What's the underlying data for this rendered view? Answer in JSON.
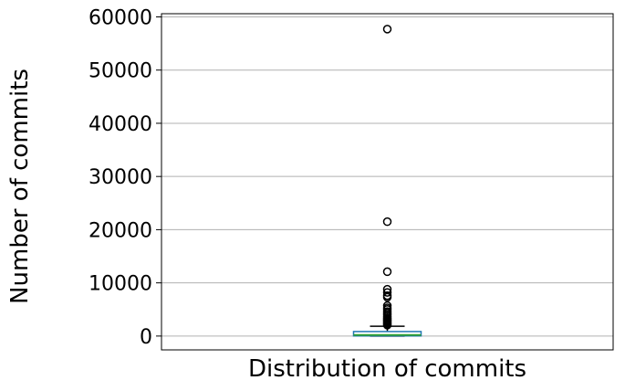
{
  "chart_data": {
    "type": "box",
    "title": "",
    "xlabel": "Distribution of commits",
    "ylabel": "Number of commits",
    "ylim": [
      -2600,
      60600
    ],
    "yticks": [
      0,
      10000,
      20000,
      30000,
      40000,
      50000,
      60000
    ],
    "ytick_labels": [
      "0",
      "10000",
      "20000",
      "30000",
      "40000",
      "50000",
      "60000"
    ],
    "grid": "y",
    "box": {
      "whisker_low": 0,
      "q1": 30,
      "median": 200,
      "q3": 850,
      "whisker_high": 1850
    },
    "outliers": [
      57700,
      21500,
      12100,
      8800,
      8200,
      7600,
      7300,
      5700,
      5300,
      5000,
      4600,
      4300,
      4000,
      3700,
      3400,
      3200,
      3000,
      2800,
      2600,
      2400,
      2200,
      2050
    ],
    "colors": {
      "box": "#1f77b4",
      "median": "#2ca02c",
      "whisker": "#000000",
      "grid": "#b0b0b0",
      "outlier_edge": "#000000"
    }
  }
}
